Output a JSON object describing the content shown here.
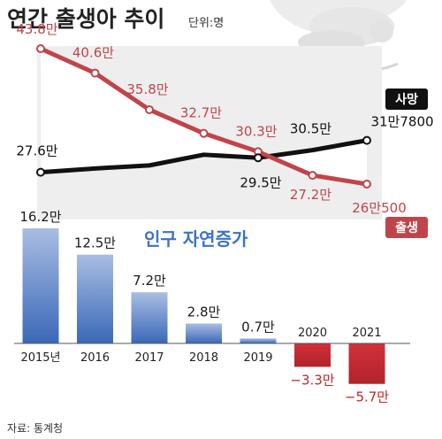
{
  "header": {
    "title": "연간 출생아 추이",
    "unit": "단위:명"
  },
  "source": "자료: 통계청",
  "colors": {
    "birth": "#c0454b",
    "death": "#111111",
    "bar_positive": "#3f6fc0",
    "bar_negative": "#c0252b",
    "accent_text": "#3c73c4"
  },
  "chart_data": [
    {
      "type": "line",
      "x": [
        "2015",
        "2016",
        "2017",
        "2018",
        "2019",
        "2020",
        "2021"
      ],
      "series": [
        {
          "name": "출생",
          "values": [
            438000,
            406000,
            358000,
            327000,
            303000,
            272000,
            260500
          ],
          "labels": [
            "43.8만",
            "40.6만",
            "35.8만",
            "32.7만",
            "30.3만",
            "27.2만",
            "26만500"
          ]
        },
        {
          "name": "사망",
          "values": [
            276000,
            281000,
            285000,
            299000,
            295000,
            305000,
            317800
          ],
          "labels": [
            "27.6만",
            "",
            "",
            "",
            "29.5만",
            "30.5만",
            "31만7800"
          ]
        }
      ]
    },
    {
      "type": "bar",
      "title": "인구 자연증가",
      "categories": [
        "2015년",
        "2016",
        "2017",
        "2018",
        "2019",
        "2020",
        "2021"
      ],
      "values": [
        162000,
        125000,
        72000,
        28000,
        7000,
        -33000,
        -57000
      ],
      "labels": [
        "16.2만",
        "12.5만",
        "7.2만",
        "2.8만",
        "0.7만",
        "−3.3만",
        "−5.7만"
      ]
    }
  ]
}
